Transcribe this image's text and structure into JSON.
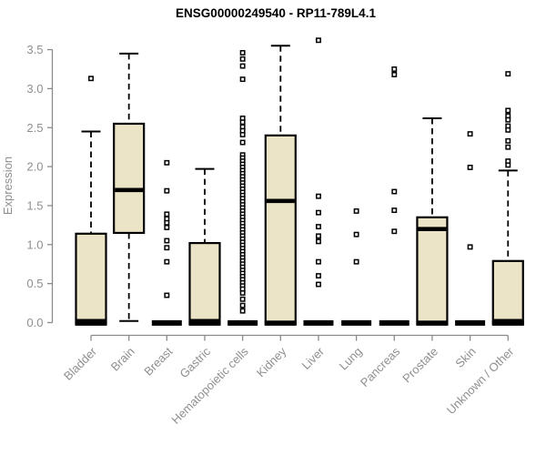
{
  "page": {
    "background": "#ffffff"
  },
  "chart_data": {
    "type": "boxplot",
    "title": "ENSG00000249540 - RP11-789L4.1",
    "xlabel": "",
    "ylabel": "Expression",
    "ylim": [
      0,
      3.5
    ],
    "ytick_labels": [
      "0.0",
      "0.5",
      "1.0",
      "1.5",
      "2.0",
      "2.5",
      "3.0",
      "3.5"
    ],
    "grid": false,
    "legend": "none",
    "categories": [
      "Bladder",
      "Brain",
      "Breast",
      "Gastric",
      "Hematopoietic cells",
      "Kidney",
      "Liver",
      "Lung",
      "Pancreas",
      "Prostate",
      "Skin",
      "Unknown / Other"
    ],
    "series": [
      {
        "name": "Bladder",
        "q1": 0,
        "median": 0.02,
        "q3": 1.14,
        "whisker_low": null,
        "whisker_high": 2.45,
        "outliers": [
          3.13
        ]
      },
      {
        "name": "Brain",
        "q1": 1.15,
        "median": 1.7,
        "q3": 2.55,
        "whisker_low": 0.02,
        "whisker_high": 3.45,
        "outliers": []
      },
      {
        "name": "Breast",
        "q1": 0,
        "median": 0,
        "q3": 0,
        "whisker_low": null,
        "whisker_high": null,
        "outliers": [
          2.05,
          1.69,
          1.39,
          1.33,
          1.28,
          1.22,
          1.05,
          0.96,
          0.78,
          0.35
        ]
      },
      {
        "name": "Gastric",
        "q1": 0,
        "median": 0.02,
        "q3": 1.02,
        "whisker_low": null,
        "whisker_high": 1.97,
        "outliers": []
      },
      {
        "name": "Hematopoietic cells",
        "q1": 0,
        "median": 0,
        "q3": 0,
        "whisker_low": null,
        "whisker_high": null,
        "outliers": [
          3.46,
          3.38,
          3.29,
          3.12,
          2.62,
          2.57,
          2.51,
          2.46,
          2.41,
          2.31,
          2.15,
          2.11,
          2.07,
          2.03,
          1.99,
          1.95,
          1.91,
          1.87,
          1.83,
          1.79,
          1.75,
          1.71,
          1.67,
          1.63,
          1.59,
          1.55,
          1.51,
          1.47,
          1.43,
          1.39,
          1.35,
          1.31,
          1.27,
          1.23,
          1.19,
          1.15,
          1.11,
          1.07,
          1.03,
          0.99,
          0.95,
          0.91,
          0.87,
          0.83,
          0.79,
          0.75,
          0.71,
          0.67,
          0.63,
          0.59,
          0.55,
          0.51,
          0.47,
          0.43,
          0.38,
          0.3,
          0.22,
          0.15
        ]
      },
      {
        "name": "Kidney",
        "q1": 0,
        "median": 1.56,
        "q3": 2.4,
        "whisker_low": null,
        "whisker_high": 3.55,
        "outliers": []
      },
      {
        "name": "Liver",
        "q1": 0,
        "median": 0,
        "q3": 0,
        "whisker_low": null,
        "whisker_high": null,
        "outliers": [
          3.62,
          1.62,
          1.41,
          1.23,
          1.11,
          1.04,
          0.78,
          0.6,
          0.49
        ]
      },
      {
        "name": "Lung",
        "q1": 0,
        "median": 0,
        "q3": 0,
        "whisker_low": null,
        "whisker_high": null,
        "outliers": [
          1.43,
          1.13,
          0.78
        ]
      },
      {
        "name": "Pancreas",
        "q1": 0,
        "median": 0,
        "q3": 0,
        "whisker_low": null,
        "whisker_high": null,
        "outliers": [
          3.25,
          3.18,
          1.68,
          1.44,
          1.17
        ]
      },
      {
        "name": "Prostate",
        "q1": 0,
        "median": 1.2,
        "q3": 1.35,
        "whisker_low": null,
        "whisker_high": 2.62,
        "outliers": []
      },
      {
        "name": "Skin",
        "q1": 0,
        "median": 0,
        "q3": 0,
        "whisker_low": null,
        "whisker_high": null,
        "outliers": [
          2.42,
          1.99,
          0.97
        ]
      },
      {
        "name": "Unknown / Other",
        "q1": 0,
        "median": 0.02,
        "q3": 0.79,
        "whisker_low": null,
        "whisker_high": 1.95,
        "outliers": [
          3.19,
          2.72,
          2.65,
          2.6,
          2.52,
          2.47,
          2.33,
          2.25,
          2.07,
          2.02
        ]
      }
    ],
    "style": {
      "box_fill": "#EBE4C6",
      "box_border": "#000000",
      "median_color": "#000000",
      "whisker_style": "dashed",
      "outlier_marker": "open-square",
      "axis_color": "#8A8A8A",
      "label_color": "#8F8F8F",
      "title_color": "#000000"
    }
  }
}
